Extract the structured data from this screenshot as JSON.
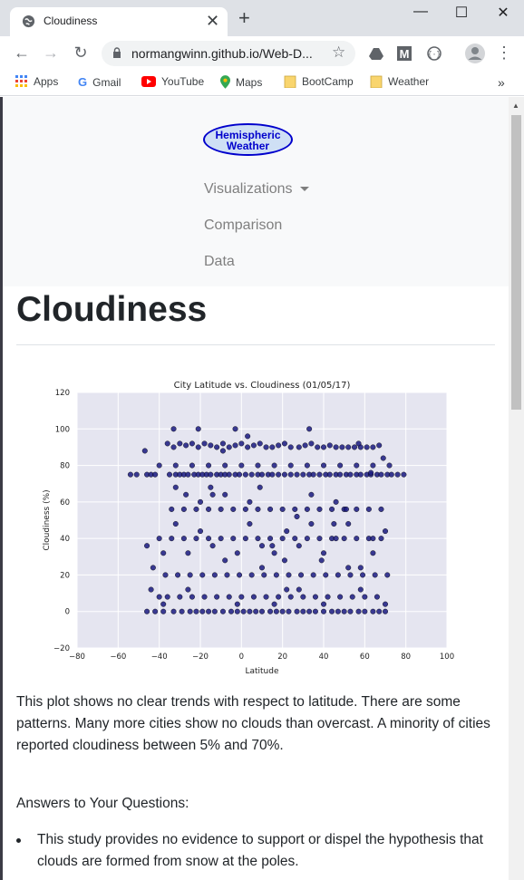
{
  "browser": {
    "tab_title": "Cloudiness",
    "url": "normangwinn.github.io/Web-D...",
    "window_controls": [
      "minimize-icon",
      "maximize-icon",
      "close-icon"
    ],
    "bookmarks": [
      {
        "label": "Apps",
        "icon": "apps-grid-icon",
        "color": "#4285f4"
      },
      {
        "label": "Gmail",
        "icon": "google-g-icon",
        "color": "#4285f4"
      },
      {
        "label": "YouTube",
        "icon": "youtube-icon",
        "color": "#ff0000"
      },
      {
        "label": "Maps",
        "icon": "maps-pin-icon",
        "color": "#34a853"
      },
      {
        "label": "BootCamp",
        "icon": "folder-icon",
        "color": "#f9d56e"
      },
      {
        "label": "Weather",
        "icon": "folder-icon",
        "color": "#f9d56e"
      }
    ],
    "overflow": "»"
  },
  "site": {
    "brand_line1": "Hemispheric",
    "brand_line2": "Weather",
    "nav": [
      "Visualizations",
      "Comparison",
      "Data"
    ]
  },
  "page": {
    "title": "Cloudiness",
    "paragraph": "This plot shows no clear trends with respect to latitude. There are some patterns. Many more cities show no clouds than overcast. A minority of cities reported cloudiness between 5% and 70%.",
    "answers_heading": "Answers to Your Questions:",
    "bullets": [
      "This study provides no evidence to support or dispel the hypothesis that clouds are formed from snow at the poles."
    ]
  },
  "chart_data": {
    "type": "scatter",
    "title": "City Latitude vs. Cloudiness (01/05/17)",
    "xlabel": "Latitude",
    "ylabel": "Cloudiness (%)",
    "xlim": [
      -80,
      100
    ],
    "ylim": [
      -20,
      120
    ],
    "xticks": [
      -80,
      -60,
      -40,
      -20,
      0,
      20,
      40,
      60,
      80,
      100
    ],
    "yticks": [
      -20,
      0,
      20,
      40,
      60,
      80,
      100,
      120
    ],
    "point_color": "#1a1a80",
    "background": "#e5e5f0",
    "grid": true,
    "x": [
      -54,
      -51,
      -46,
      -44,
      -42,
      -35,
      -32,
      -30,
      -28,
      -26,
      -23,
      -21,
      -19,
      -17,
      -15,
      -12,
      -10,
      -8,
      -6,
      -3,
      -1,
      2,
      5,
      8,
      10,
      13,
      15,
      18,
      21,
      24,
      27,
      30,
      33,
      35,
      38,
      41,
      43,
      46,
      48,
      51,
      53,
      56,
      58,
      61,
      63,
      66,
      68,
      71,
      73,
      76,
      79,
      -46,
      -42,
      -38,
      -33,
      -29,
      -25,
      -22,
      -19,
      -16,
      -13,
      -9,
      -5,
      -2,
      1,
      4,
      7,
      10,
      14,
      17,
      20,
      23,
      27,
      30,
      33,
      36,
      40,
      44,
      47,
      50,
      53,
      57,
      60,
      64,
      67,
      70,
      -36,
      -33,
      -30,
      -27,
      -24,
      -21,
      -18,
      -15,
      -12,
      -9,
      -6,
      -3,
      0,
      3,
      6,
      9,
      12,
      15,
      18,
      21,
      24,
      28,
      31,
      34,
      37,
      40,
      43,
      46,
      49,
      52,
      55,
      58,
      61,
      64,
      67,
      -40,
      -34,
      -28,
      -22,
      -16,
      -10,
      -4,
      2,
      8,
      14,
      20,
      26,
      32,
      38,
      44,
      50,
      56,
      62,
      68,
      -37,
      -31,
      -25,
      -19,
      -13,
      -7,
      -1,
      5,
      11,
      17,
      23,
      29,
      35,
      41,
      47,
      53,
      59,
      65,
      71,
      -34,
      -28,
      -22,
      -16,
      -10,
      -4,
      2,
      8,
      14,
      20,
      26,
      32,
      38,
      44,
      50,
      56,
      62,
      68,
      -36,
      -30,
      -24,
      -18,
      -12,
      -6,
      0,
      6,
      12,
      18,
      24,
      30,
      36,
      42,
      48,
      54,
      60,
      66,
      -46,
      -43,
      -38,
      -32,
      -26,
      -20,
      -14,
      -8,
      -2,
      4,
      10,
      16,
      22,
      28,
      34,
      40,
      46,
      52,
      58,
      64,
      70,
      -47,
      -40,
      -33,
      -27,
      -21,
      -15,
      -9,
      -3,
      3,
      9,
      15,
      21,
      27,
      33,
      39,
      45,
      51,
      57,
      63,
      69,
      -40,
      -32,
      -24,
      -16,
      -8,
      0,
      8,
      16,
      24,
      32,
      40,
      48,
      56,
      64,
      72,
      -44,
      -38,
      -32,
      -26,
      -20,
      -14,
      -8,
      -2,
      4,
      10,
      16,
      22,
      28,
      34,
      40,
      46,
      52,
      58,
      64,
      70
    ],
    "y": [
      75,
      75,
      75,
      75,
      75,
      75,
      75,
      75,
      75,
      75,
      75,
      75,
      75,
      75,
      75,
      75,
      75,
      75,
      75,
      75,
      75,
      75,
      75,
      75,
      75,
      75,
      75,
      75,
      75,
      75,
      75,
      75,
      75,
      75,
      75,
      75,
      75,
      75,
      75,
      75,
      75,
      75,
      75,
      75,
      75,
      75,
      75,
      75,
      75,
      75,
      75,
      0,
      0,
      0,
      0,
      0,
      0,
      0,
      0,
      0,
      0,
      0,
      0,
      0,
      0,
      0,
      0,
      0,
      0,
      0,
      0,
      0,
      0,
      0,
      0,
      0,
      0,
      0,
      0,
      0,
      0,
      0,
      0,
      0,
      0,
      0,
      92,
      90,
      92,
      91,
      92,
      90,
      92,
      91,
      90,
      92,
      90,
      91,
      92,
      90,
      91,
      92,
      90,
      90,
      91,
      92,
      90,
      90,
      91,
      92,
      90,
      90,
      91,
      90,
      90,
      90,
      90,
      90,
      90,
      90,
      91,
      40,
      40,
      40,
      40,
      40,
      40,
      40,
      40,
      40,
      40,
      40,
      40,
      40,
      40,
      40,
      40,
      40,
      40,
      40,
      20,
      20,
      20,
      20,
      20,
      20,
      20,
      20,
      20,
      20,
      20,
      20,
      20,
      20,
      20,
      20,
      20,
      20,
      20,
      56,
      56,
      56,
      56,
      56,
      56,
      56,
      56,
      56,
      56,
      56,
      56,
      56,
      56,
      56,
      56,
      56,
      56,
      8,
      8,
      8,
      8,
      8,
      8,
      8,
      8,
      8,
      8,
      8,
      8,
      8,
      8,
      8,
      8,
      8,
      8,
      36,
      24,
      32,
      48,
      32,
      44,
      36,
      64,
      32,
      48,
      36,
      32,
      44,
      36,
      48,
      32,
      40,
      48,
      24,
      32,
      44,
      88,
      8,
      100,
      64,
      100,
      68,
      88,
      100,
      96,
      68,
      36,
      28,
      52,
      100,
      28,
      48,
      56,
      92,
      76,
      84,
      80,
      80,
      80,
      80,
      80,
      80,
      80,
      80,
      80,
      80,
      80,
      80,
      80,
      80,
      80,
      12,
      4,
      68,
      12,
      60,
      64,
      28,
      4,
      60,
      24,
      4,
      12,
      12,
      64,
      4,
      60,
      24,
      12,
      40,
      4
    ]
  }
}
